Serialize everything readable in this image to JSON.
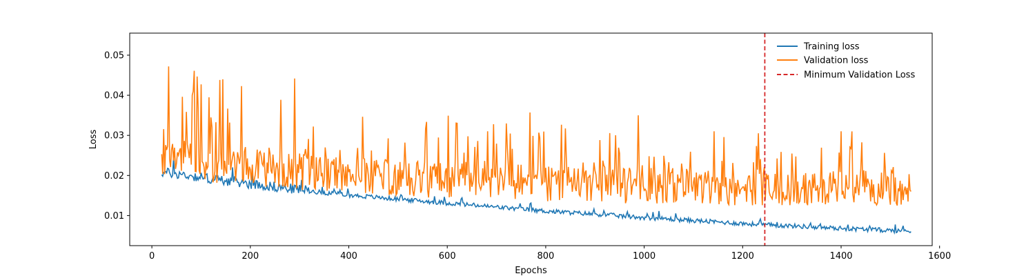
{
  "chart_data": {
    "type": "line",
    "title": "",
    "xlabel": "Epochs",
    "ylabel": "Loss",
    "xlim": [
      -45,
      1585
    ],
    "ylim": [
      0.0025,
      0.0555
    ],
    "x_ticks": [
      0,
      200,
      400,
      600,
      800,
      1000,
      1200,
      1400,
      1600
    ],
    "y_ticks": [
      0.01,
      0.02,
      0.03,
      0.04,
      0.05
    ],
    "x_tick_labels": [
      "0",
      "200",
      "400",
      "600",
      "800",
      "1000",
      "1200",
      "1400",
      "1600"
    ],
    "y_tick_labels": [
      "0.01",
      "0.02",
      "0.03",
      "0.04",
      "0.05"
    ],
    "grid": false,
    "legend_position": "top-right",
    "series": [
      {
        "name": "Training loss",
        "color": "#1f77b4",
        "style": "solid",
        "x": [
          20,
          40,
          60,
          80,
          100,
          120,
          140,
          160,
          180,
          200,
          240,
          280,
          320,
          360,
          400,
          440,
          480,
          520,
          560,
          600,
          640,
          680,
          720,
          760,
          800,
          840,
          880,
          920,
          960,
          1000,
          1040,
          1080,
          1120,
          1160,
          1200,
          1240,
          1280,
          1320,
          1360,
          1400,
          1440,
          1480,
          1520,
          1543
        ],
        "y": [
          0.0205,
          0.0203,
          0.02,
          0.0196,
          0.0193,
          0.0189,
          0.0186,
          0.0183,
          0.018,
          0.0177,
          0.0171,
          0.0165,
          0.016,
          0.0155,
          0.015,
          0.0146,
          0.0142,
          0.0138,
          0.0134,
          0.013,
          0.0126,
          0.0122,
          0.0118,
          0.0114,
          0.011,
          0.0107,
          0.0104,
          0.0101,
          0.0097,
          0.0094,
          0.0091,
          0.0088,
          0.0085,
          0.0082,
          0.0079,
          0.0076,
          0.0074,
          0.0072,
          0.0069,
          0.0067,
          0.0065,
          0.0063,
          0.0061,
          0.006
        ]
      },
      {
        "name": "Validation loss",
        "color": "#ff7f0e",
        "style": "solid",
        "x": [
          20,
          40,
          60,
          80,
          100,
          120,
          140,
          160,
          180,
          200,
          240,
          280,
          320,
          360,
          400,
          440,
          480,
          520,
          560,
          600,
          640,
          680,
          720,
          760,
          800,
          840,
          880,
          920,
          960,
          1000,
          1040,
          1080,
          1120,
          1160,
          1200,
          1240,
          1280,
          1320,
          1360,
          1400,
          1440,
          1480,
          1520,
          1543
        ],
        "y": [
          0.024,
          0.0255,
          0.0265,
          0.025,
          0.024,
          0.0235,
          0.0245,
          0.024,
          0.025,
          0.0235,
          0.023,
          0.0225,
          0.022,
          0.022,
          0.022,
          0.0215,
          0.021,
          0.021,
          0.0205,
          0.0205,
          0.0205,
          0.02,
          0.02,
          0.02,
          0.0195,
          0.0195,
          0.0195,
          0.0195,
          0.019,
          0.019,
          0.019,
          0.019,
          0.019,
          0.0185,
          0.0185,
          0.0185,
          0.0185,
          0.0185,
          0.0185,
          0.0185,
          0.0185,
          0.018,
          0.018,
          0.018
        ]
      }
    ],
    "vlines": [
      {
        "name": "Minimum Validation Loss",
        "x": 1245,
        "color": "#d62728",
        "style": "dashed"
      }
    ]
  }
}
